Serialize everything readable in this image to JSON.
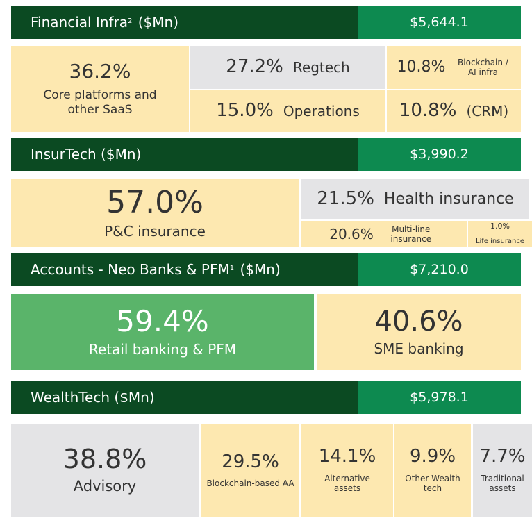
{
  "sections": [
    {
      "title": "Financial Infra",
      "sup": "2",
      "suffix": " ($Mn)",
      "total": "$5,644.1",
      "tiles": [
        {
          "value": "36.2%",
          "label": "Core platforms and other SaaS"
        },
        {
          "value": "27.2%",
          "label": "Regtech"
        },
        {
          "value": "10.8%",
          "label": "Blockchain / AI infra"
        },
        {
          "value": "15.0%",
          "label": "Operations"
        },
        {
          "value": "10.8%",
          "label": "(CRM)"
        }
      ]
    },
    {
      "title": "InsurTech ($Mn)",
      "total": "$3,990.2",
      "tiles": [
        {
          "value": "57.0%",
          "label": "P&C insurance"
        },
        {
          "value": "21.5%",
          "label": "Health insurance"
        },
        {
          "value": "20.6%",
          "label": "Multi-line insurance"
        },
        {
          "value": "1.0%",
          "label": "Life insurance"
        }
      ]
    },
    {
      "title": "Accounts - Neo Banks & PFM",
      "sup": "1",
      "suffix": " ($Mn)",
      "total": "$7,210.0",
      "tiles": [
        {
          "value": "59.4%",
          "label": "Retail banking & PFM"
        },
        {
          "value": "40.6%",
          "label": "SME banking"
        }
      ]
    },
    {
      "title": "WealthTech ($Mn)",
      "total": "$5,978.1",
      "tiles": [
        {
          "value": "38.8%",
          "label": "Advisory"
        },
        {
          "value": "29.5%",
          "label": "Blockchain-based AA"
        },
        {
          "value": "14.1%",
          "label": "Alternative assets"
        },
        {
          "value": "9.9%",
          "label": "Other Wealth tech"
        },
        {
          "value": "7.7%",
          "label": "Traditional assets"
        }
      ]
    }
  ]
}
